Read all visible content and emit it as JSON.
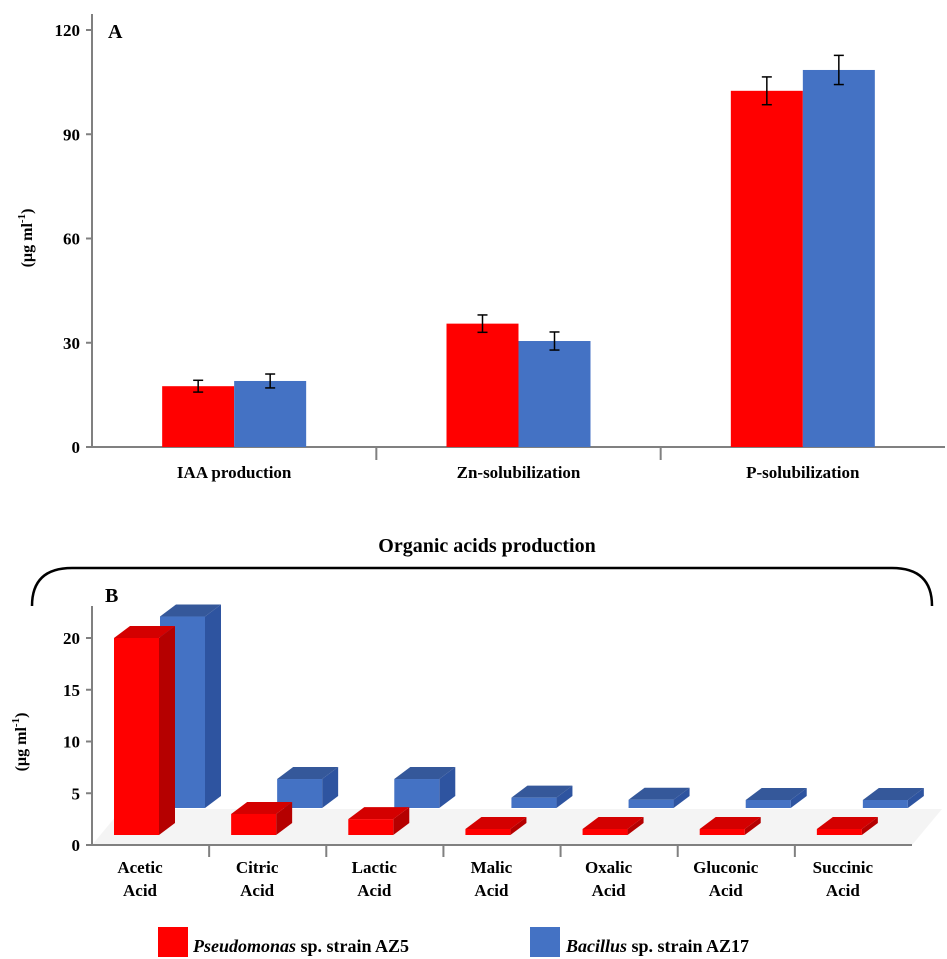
{
  "colors": {
    "pseudomonas": "#ff0000",
    "pseudomonas_side": "#b50000",
    "pseudomonas_top": "#d40000",
    "bacillus": "#4472c4",
    "bacillus_side": "#2e54a0",
    "bacillus_top": "#35589a",
    "axis": "#808080"
  },
  "legend": {
    "pseudomonas_italic": "Pseudomonas",
    "pseudomonas_rest": " sp. strain AZ5",
    "bacillus_italic": "Bacillus",
    "bacillus_rest": " sp. strain AZ17"
  },
  "chart_data": [
    {
      "type": "bar",
      "panel_label": "A",
      "title": "",
      "xlabel": "",
      "ylabel": "(µg ml-1)",
      "ylabel_main": "(µg ml",
      "ylabel_sup": "-1",
      "ylabel_close": ")",
      "ylim": [
        0,
        120
      ],
      "yticks": [
        0,
        30,
        60,
        90,
        120
      ],
      "grid": false,
      "error_bars": true,
      "categories": [
        "IAA production",
        "Zn-solubilization",
        "P-solubilization"
      ],
      "series": [
        {
          "name": "Pseudomonas sp. strain AZ5",
          "values": [
            17.5,
            35.5,
            102.5
          ],
          "errors": [
            1.7,
            2.5,
            4.0
          ]
        },
        {
          "name": "Bacillus sp. strain AZ17",
          "values": [
            19.0,
            30.5,
            108.5
          ],
          "errors": [
            2.0,
            2.6,
            4.2
          ]
        }
      ]
    },
    {
      "type": "bar",
      "panel_label": "B",
      "title": "Organic acids production",
      "xlabel": "",
      "ylabel": "(µg ml-1)",
      "ylabel_main": "(µg ml",
      "ylabel_sup": "-1",
      "ylabel_close": ")",
      "ylim": [
        0,
        20
      ],
      "yticks": [
        0,
        5,
        10,
        15,
        20
      ],
      "grid": false,
      "style": "3d",
      "categories": [
        [
          "Acetic",
          "Acid"
        ],
        [
          "Citric",
          "Acid"
        ],
        [
          "Lactic",
          "Acid"
        ],
        [
          "Malic",
          "Acid"
        ],
        [
          "Oxalic",
          "Acid"
        ],
        [
          "Gluconic",
          "Acid"
        ],
        [
          "Succinic",
          "Acid"
        ]
      ],
      "series": [
        {
          "name": "Pseudomonas sp. strain AZ5",
          "values": [
            20.0,
            3.0,
            2.5,
            1.0,
            1.0,
            0.7,
            0.3
          ]
        },
        {
          "name": "Bacillus sp. strain AZ17",
          "values": [
            18.5,
            2.8,
            2.8,
            1.0,
            0.8,
            0.5,
            0.3
          ]
        }
      ]
    }
  ]
}
